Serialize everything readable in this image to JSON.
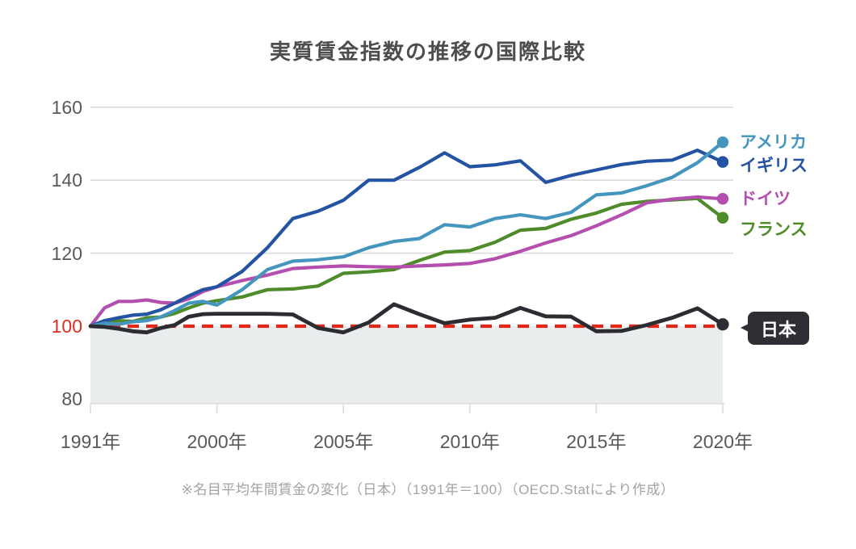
{
  "title": "実質賃金指数の推移の国際比較",
  "footnote": "※名目平均年間賃金の変化（日本）（1991年＝100）（OECD.Statにより作成）",
  "japan_badge_label": "日本",
  "colors": {
    "usa": "#4596be",
    "uk": "#2553a4",
    "germany": "#b44fae",
    "france": "#4e8b29",
    "japan": "#2c2c32",
    "reference_red": "#e22718",
    "shaded_area": "#e9edee",
    "gridline": "#dcdcdc",
    "axis_text": "#595959",
    "highlight_tick_text": "#d93020"
  },
  "chart_data": {
    "type": "line",
    "title": "実質賃金指数の推移の国際比較",
    "index_note": "1991年＝100",
    "x_years": [
      1991,
      1992,
      1993,
      1994,
      1995,
      1996,
      1997,
      1998,
      1999,
      2000,
      2001,
      2002,
      2003,
      2004,
      2005,
      2006,
      2007,
      2008,
      2009,
      2010,
      2011,
      2012,
      2013,
      2014,
      2015,
      2016,
      2017,
      2018,
      2019,
      2020
    ],
    "x_axis": {
      "ticks": [
        {
          "year": 1991,
          "label": "1991年"
        },
        {
          "year": 2000,
          "label": "2000年"
        },
        {
          "year": 2005,
          "label": "2005年"
        },
        {
          "year": 2010,
          "label": "2010年"
        },
        {
          "year": 2015,
          "label": "2015年"
        },
        {
          "year": 2020,
          "label": "2020年"
        }
      ]
    },
    "y_axis": {
      "ticks": [
        80,
        100,
        120,
        140,
        160
      ],
      "range": [
        80,
        160
      ],
      "gridline_ticks": [
        120,
        140,
        160
      ],
      "highlight_tick": 100
    },
    "reference_line": {
      "value": 100,
      "style": "dashed",
      "color": "#e22718"
    },
    "shaded_area": {
      "below": 100,
      "color": "#e9edee"
    },
    "legend_position": "right-of-lines",
    "series": [
      {
        "id": "usa",
        "name": "アメリカ",
        "color": "#4596be",
        "values": [
          100,
          100.8,
          100.5,
          101.2,
          101.5,
          102.5,
          104.3,
          106.3,
          106.8,
          105.8,
          110,
          115.5,
          117.8,
          118.2,
          119,
          121.5,
          123.2,
          124,
          127.8,
          127.2,
          129.5,
          130.5,
          129.5,
          131.2,
          136,
          136.5,
          138.5,
          140.8,
          144.8,
          150.4
        ]
      },
      {
        "id": "uk",
        "name": "イギリス",
        "color": "#2553a4",
        "values": [
          100,
          101.5,
          102.3,
          103,
          103.3,
          104.5,
          106.3,
          108.3,
          110,
          110.8,
          115,
          121.5,
          129.5,
          131.5,
          134.5,
          140,
          140,
          143.5,
          147.5,
          143.7,
          144.2,
          145.3,
          139.4,
          141.3,
          142.8,
          144.3,
          145.2,
          145.5,
          148.2,
          145
        ]
      },
      {
        "id": "germany",
        "name": "ドイツ",
        "color": "#b44fae",
        "values": [
          100,
          105,
          106.8,
          106.8,
          107.2,
          106.5,
          106.3,
          107.5,
          109.5,
          110.8,
          112.5,
          114,
          115.8,
          116.2,
          116.5,
          116.3,
          116.2,
          116.5,
          116.8,
          117.2,
          118.5,
          120.5,
          122.8,
          124.8,
          127.5,
          130.5,
          133.8,
          134.8,
          135.4,
          134.9
        ]
      },
      {
        "id": "france",
        "name": "フランス",
        "color": "#4e8b29",
        "values": [
          100,
          101.2,
          101.5,
          101.3,
          102.3,
          102.5,
          103.5,
          105,
          106.3,
          107,
          108,
          110,
          110.2,
          111,
          114.5,
          114.9,
          115.5,
          118,
          120.3,
          120.7,
          123,
          126.3,
          126.8,
          129.3,
          131,
          133.4,
          134.2,
          134.6,
          135,
          129.7
        ]
      },
      {
        "id": "japan",
        "name": "日本",
        "color": "#2c2c32",
        "values": [
          100,
          99.8,
          99.3,
          98.6,
          98.3,
          99.5,
          100.3,
          102.6,
          103.3,
          103.4,
          103.4,
          103.4,
          103.2,
          99.5,
          98.3,
          101,
          106,
          103.3,
          100.8,
          101.8,
          102.3,
          105,
          102.7,
          102.6,
          98.6,
          98.7,
          100.3,
          102.3,
          104.9,
          100.5
        ]
      }
    ]
  }
}
